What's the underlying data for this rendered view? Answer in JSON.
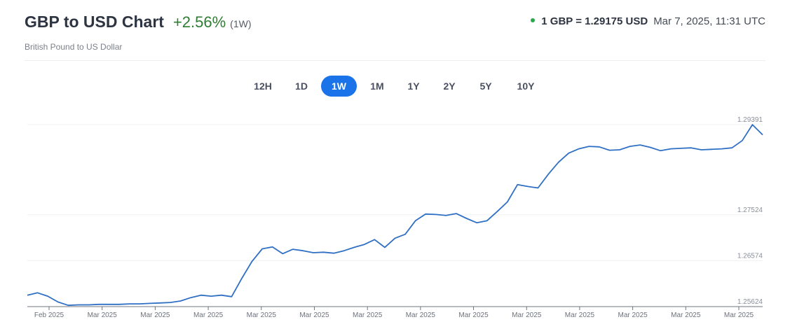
{
  "header": {
    "title": "GBP to USD Chart",
    "change": "+2.56%",
    "period": "(1W)",
    "subtitle": "British Pound to US Dollar",
    "rate": "1 GBP = 1.29175 USD",
    "timestamp": "Mar 7, 2025, 11:31 UTC"
  },
  "periods": [
    "12H",
    "1D",
    "1W",
    "1M",
    "1Y",
    "2Y",
    "5Y",
    "10Y"
  ],
  "active_period": "1W",
  "colors": {
    "accent": "#1a73e8",
    "line": "#2f6fc4",
    "positive": "#2e7d32",
    "live": "#2aa84a"
  },
  "chart_data": {
    "type": "line",
    "series": [
      {
        "values": [
          1.2586,
          1.2591,
          1.2584,
          1.2572,
          1.2565,
          1.2566,
          1.2566,
          1.2567,
          1.2567,
          1.2567,
          1.2568,
          1.2568,
          1.2569,
          1.257,
          1.2571,
          1.2574,
          1.2581,
          1.2586,
          1.2584,
          1.2586,
          1.2583,
          1.2621,
          1.2656,
          1.2682,
          1.2686,
          1.2672,
          1.2681,
          1.2678,
          1.2674,
          1.2675,
          1.2673,
          1.2678,
          1.2685,
          1.2691,
          1.2701,
          1.2685,
          1.2704,
          1.2712,
          1.274,
          1.2754,
          1.2753,
          1.2751,
          1.2755,
          1.2745,
          1.2736,
          1.274,
          1.2759,
          1.2779,
          1.2815,
          1.2811,
          1.2808,
          1.2836,
          1.2861,
          1.288,
          1.2889,
          1.2894,
          1.2893,
          1.2886,
          1.2887,
          1.2894,
          1.2897,
          1.2892,
          1.2885,
          1.2889,
          1.289,
          1.2891,
          1.2887,
          1.2888,
          1.2889,
          1.2891,
          1.2906,
          1.2939,
          1.2918
        ],
        "color": "#2f6fc4"
      }
    ],
    "x_tick_labels": [
      "Feb 2025",
      "Mar 2025",
      "Mar 2025",
      "Mar 2025",
      "Mar 2025",
      "Mar 2025",
      "Mar 2025",
      "Mar 2025",
      "Mar 2025",
      "Mar 2025",
      "Mar 2025",
      "Mar 2025",
      "Mar 2025",
      "Mar 2025"
    ],
    "y_tick_labels": [
      "1.29391",
      "1.27524",
      "1.26574",
      "1.25624"
    ],
    "ylim": [
      1.25624,
      1.29391
    ],
    "grid": true
  }
}
